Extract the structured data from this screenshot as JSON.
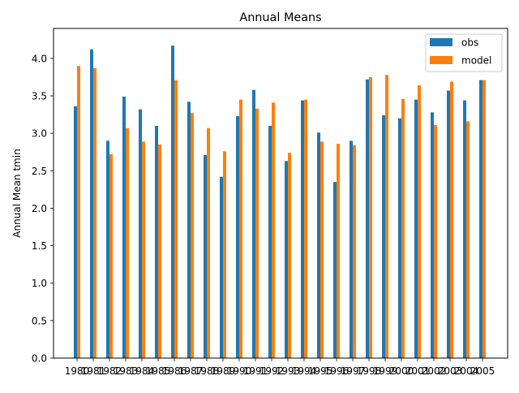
{
  "chart_data": {
    "type": "bar",
    "title": "Annual Means",
    "xlabel": "",
    "ylabel": "Annual Mean tmin",
    "ylim": [
      0,
      4.4
    ],
    "yticks": [
      0.0,
      0.5,
      1.0,
      1.5,
      2.0,
      2.5,
      3.0,
      3.5,
      4.0
    ],
    "ytick_labels": [
      "0.0",
      "0.5",
      "1.0",
      "1.5",
      "2.0",
      "2.5",
      "3.0",
      "3.5",
      "4.0"
    ],
    "grid": false,
    "legend_position": "top-right",
    "categories": [
      "1980",
      "1981",
      "1982",
      "1983",
      "1984",
      "1985",
      "1986",
      "1987",
      "1988",
      "1989",
      "1990",
      "1991",
      "1992",
      "1993",
      "1994",
      "1995",
      "1996",
      "1997",
      "1998",
      "1999",
      "2000",
      "2001",
      "2002",
      "2003",
      "2004",
      "2005"
    ],
    "series": [
      {
        "name": "obs",
        "color": "#1f77b4",
        "values": [
          3.36,
          4.12,
          2.9,
          3.49,
          3.32,
          3.1,
          4.17,
          3.42,
          2.71,
          2.42,
          3.23,
          3.58,
          3.1,
          2.63,
          3.44,
          3.01,
          2.35,
          2.9,
          3.72,
          3.24,
          3.2,
          3.45,
          3.28,
          3.57,
          3.44,
          3.71
        ]
      },
      {
        "name": "model",
        "color": "#ff7f0e",
        "values": [
          3.9,
          3.87,
          2.72,
          3.07,
          2.89,
          2.85,
          3.71,
          3.27,
          3.07,
          2.76,
          3.45,
          3.33,
          3.41,
          2.74,
          3.45,
          2.89,
          2.86,
          2.84,
          3.75,
          3.78,
          3.46,
          3.64,
          3.11,
          3.69,
          3.16,
          3.71
        ]
      }
    ]
  }
}
